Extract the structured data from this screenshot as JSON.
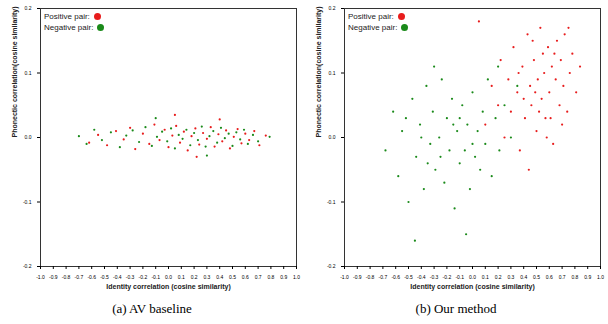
{
  "chart_data": [
    {
      "type": "scatter",
      "title": "(a) AV baseline",
      "x_label": "Identity correlation (cosine similarity)",
      "y_label": "Phonectic correlation(cosine similarity)",
      "xlim": [
        -1.0,
        1.0
      ],
      "xticks": [
        {
          "value": -1.0,
          "label": "-1.0"
        },
        -0.9,
        -0.8,
        -0.7,
        -0.6,
        -0.5,
        -0.4,
        -0.3,
        -0.2,
        -0.1,
        {
          "value": 0,
          "label": "0.0"
        },
        0.1,
        0.2,
        0.3,
        0.4,
        0.5,
        0.6,
        0.7,
        0.8,
        0.9,
        {
          "value": 1.0,
          "label": "1.0"
        }
      ],
      "ylim": [
        -0.2,
        0.2
      ],
      "yticks": [
        -0.2,
        -0.1,
        {
          "value": 0,
          "label": "0.0"
        },
        0.1,
        0.2
      ],
      "legend": "upper left",
      "series": [
        {
          "name": "Positive pair:",
          "color": "#e81c1c",
          "values": [
            [
              -0.62,
              -0.008
            ],
            [
              -0.55,
              0.004
            ],
            [
              -0.48,
              -0.012
            ],
            [
              -0.41,
              0.01
            ],
            [
              -0.35,
              -0.003
            ],
            [
              -0.3,
              0.015
            ],
            [
              -0.26,
              -0.018
            ],
            [
              -0.2,
              0.006
            ],
            [
              -0.15,
              -0.01
            ],
            [
              -0.11,
              0.02
            ],
            [
              -0.07,
              -0.004
            ],
            [
              -0.03,
              0.012
            ],
            [
              0.0,
              -0.015
            ],
            [
              0.03,
              0.003
            ],
            [
              0.06,
              0.018
            ],
            [
              0.09,
              -0.008
            ],
            [
              0.12,
              0.009
            ],
            [
              0.15,
              -0.02
            ],
            [
              0.18,
              0.002
            ],
            [
              0.21,
              0.014
            ],
            [
              0.24,
              -0.011
            ],
            [
              0.27,
              0.007
            ],
            [
              0.3,
              -0.002
            ],
            [
              0.33,
              0.016
            ],
            [
              0.36,
              -0.014
            ],
            [
              0.39,
              0.005
            ],
            [
              0.42,
              -0.006
            ],
            [
              0.45,
              0.011
            ],
            [
              0.48,
              -0.017
            ],
            [
              0.51,
              0.001
            ],
            [
              0.54,
              0.013
            ],
            [
              0.57,
              -0.009
            ],
            [
              0.6,
              0.006
            ],
            [
              0.63,
              -0.004
            ],
            [
              0.67,
              0.01
            ],
            [
              0.71,
              -0.012
            ],
            [
              0.76,
              0.003
            ],
            [
              0.05,
              0.035
            ],
            [
              0.22,
              -0.03
            ],
            [
              0.4,
              0.028
            ]
          ]
        },
        {
          "name": "Negative pair:",
          "color": "#1a8a1a",
          "values": [
            [
              -0.7,
              0.002
            ],
            [
              -0.64,
              -0.01
            ],
            [
              -0.58,
              0.012
            ],
            [
              -0.52,
              -0.004
            ],
            [
              -0.45,
              0.008
            ],
            [
              -0.38,
              -0.015
            ],
            [
              -0.33,
              0.003
            ],
            [
              -0.28,
              0.011
            ],
            [
              -0.23,
              -0.007
            ],
            [
              -0.18,
              0.016
            ],
            [
              -0.13,
              -0.013
            ],
            [
              -0.09,
              0.001
            ],
            [
              -0.05,
              0.009
            ],
            [
              -0.01,
              -0.006
            ],
            [
              0.02,
              0.014
            ],
            [
              0.05,
              -0.017
            ],
            [
              0.08,
              0.004
            ],
            [
              0.11,
              -0.002
            ],
            [
              0.14,
              0.012
            ],
            [
              0.17,
              -0.012
            ],
            [
              0.2,
              0.007
            ],
            [
              0.23,
              -0.004
            ],
            [
              0.26,
              0.017
            ],
            [
              0.29,
              -0.014
            ],
            [
              0.32,
              0.002
            ],
            [
              0.35,
              0.01
            ],
            [
              0.38,
              -0.008
            ],
            [
              0.41,
              0.015
            ],
            [
              0.44,
              -0.001
            ],
            [
              0.47,
              0.006
            ],
            [
              0.5,
              -0.013
            ],
            [
              0.53,
              0.008
            ],
            [
              0.56,
              -0.003
            ],
            [
              0.59,
              0.012
            ],
            [
              0.62,
              -0.01
            ],
            [
              0.66,
              0.004
            ],
            [
              0.7,
              -0.006
            ],
            [
              0.79,
              0.001
            ],
            [
              -0.1,
              0.03
            ],
            [
              0.3,
              -0.028
            ]
          ]
        }
      ]
    },
    {
      "type": "scatter",
      "title": "(b) Our method",
      "x_label": "Identity correlation (cosine similarity)",
      "y_label": "Phonectic correlation(cosine similarity)",
      "xlim": [
        -1.0,
        1.0
      ],
      "xticks": [
        {
          "value": -1.0,
          "label": "-1.0"
        },
        -0.9,
        -0.8,
        -0.7,
        -0.6,
        -0.5,
        -0.4,
        -0.3,
        -0.2,
        -0.1,
        {
          "value": 0,
          "label": "0.0"
        },
        0.1,
        0.2,
        0.3,
        0.4,
        0.5,
        0.6,
        0.7,
        0.8,
        0.9,
        {
          "value": 1.0,
          "label": "1.0"
        }
      ],
      "ylim": [
        -0.2,
        0.2
      ],
      "yticks": [
        -0.2,
        -0.1,
        {
          "value": 0,
          "label": "0.0"
        },
        0.1,
        0.2
      ],
      "legend": "upper left",
      "series": [
        {
          "name": "Positive pair:",
          "color": "#e81c1c",
          "values": [
            [
              0.1,
              0.02
            ],
            [
              0.15,
              0.08
            ],
            [
              0.2,
              0.05
            ],
            [
              0.22,
              0.12
            ],
            [
              0.25,
              0.0
            ],
            [
              0.28,
              0.09
            ],
            [
              0.3,
              0.04
            ],
            [
              0.32,
              0.14
            ],
            [
              0.35,
              0.07
            ],
            [
              0.37,
              -0.02
            ],
            [
              0.39,
              0.11
            ],
            [
              0.41,
              0.03
            ],
            [
              0.43,
              0.16
            ],
            [
              0.45,
              0.08
            ],
            [
              0.46,
              0.05
            ],
            [
              0.48,
              0.12
            ],
            [
              0.5,
              0.01
            ],
            [
              0.51,
              0.09
            ],
            [
              0.53,
              0.17
            ],
            [
              0.54,
              0.06
            ],
            [
              0.56,
              0.1
            ],
            [
              0.57,
              0.03
            ],
            [
              0.59,
              0.14
            ],
            [
              0.6,
              0.07
            ],
            [
              0.62,
              0.11
            ],
            [
              0.63,
              -0.01
            ],
            [
              0.65,
              0.09
            ],
            [
              0.66,
              0.15
            ],
            [
              0.68,
              0.05
            ],
            [
              0.69,
              0.12
            ],
            [
              0.71,
              0.08
            ],
            [
              0.72,
              0.16
            ],
            [
              0.74,
              0.04
            ],
            [
              0.76,
              0.1
            ],
            [
              0.78,
              0.13
            ],
            [
              0.81,
              0.07
            ],
            [
              0.84,
              0.11
            ],
            [
              0.4,
              0.06
            ],
            [
              0.55,
              0.13
            ],
            [
              0.44,
              -0.05
            ],
            [
              0.58,
              0.0
            ],
            [
              0.47,
              0.15
            ],
            [
              0.52,
              0.04
            ],
            [
              0.64,
              0.13
            ],
            [
              0.36,
              0.1
            ],
            [
              0.7,
              0.02
            ],
            [
              0.05,
              0.18
            ],
            [
              0.75,
              0.17
            ],
            [
              0.49,
              0.07
            ],
            [
              0.61,
              0.03
            ]
          ]
        },
        {
          "name": "Negative pair:",
          "color": "#1a8a1a",
          "values": [
            [
              -0.68,
              -0.02
            ],
            [
              -0.62,
              0.04
            ],
            [
              -0.58,
              -0.06
            ],
            [
              -0.55,
              0.01
            ],
            [
              -0.5,
              -0.1
            ],
            [
              -0.47,
              0.06
            ],
            [
              -0.44,
              -0.03
            ],
            [
              -0.41,
              0.02
            ],
            [
              -0.38,
              -0.08
            ],
            [
              -0.36,
              0.08
            ],
            [
              -0.33,
              -0.01
            ],
            [
              -0.31,
              0.04
            ],
            [
              -0.29,
              -0.05
            ],
            [
              -0.26,
              0.0
            ],
            [
              -0.24,
              0.09
            ],
            [
              -0.22,
              -0.07
            ],
            [
              -0.2,
              0.03
            ],
            [
              -0.18,
              -0.02
            ],
            [
              -0.16,
              0.06
            ],
            [
              -0.14,
              -0.11
            ],
            [
              -0.12,
              0.01
            ],
            [
              -0.1,
              -0.04
            ],
            [
              -0.08,
              0.05
            ],
            [
              -0.06,
              -0.02
            ],
            [
              -0.04,
              0.02
            ],
            [
              -0.02,
              -0.08
            ],
            [
              0.0,
              0.07
            ],
            [
              0.02,
              -0.03
            ],
            [
              0.04,
              0.01
            ],
            [
              0.06,
              -0.05
            ],
            [
              0.08,
              0.04
            ],
            [
              0.1,
              -0.01
            ],
            [
              0.12,
              0.09
            ],
            [
              0.15,
              -0.06
            ],
            [
              0.18,
              0.03
            ],
            [
              0.21,
              -0.02
            ],
            [
              0.25,
              0.05
            ],
            [
              0.3,
              0.0
            ],
            [
              -0.45,
              -0.16
            ],
            [
              -0.05,
              -0.15
            ],
            [
              0.2,
              0.11
            ],
            [
              -0.3,
              0.11
            ],
            [
              -0.52,
              0.03
            ],
            [
              -0.35,
              -0.04
            ],
            [
              -0.15,
              0.02
            ],
            [
              -0.25,
              -0.03
            ],
            [
              0.0,
              -0.01
            ],
            [
              -0.1,
              0.03
            ],
            [
              -0.4,
              0.0
            ],
            [
              0.35,
              0.08
            ]
          ]
        }
      ]
    }
  ]
}
